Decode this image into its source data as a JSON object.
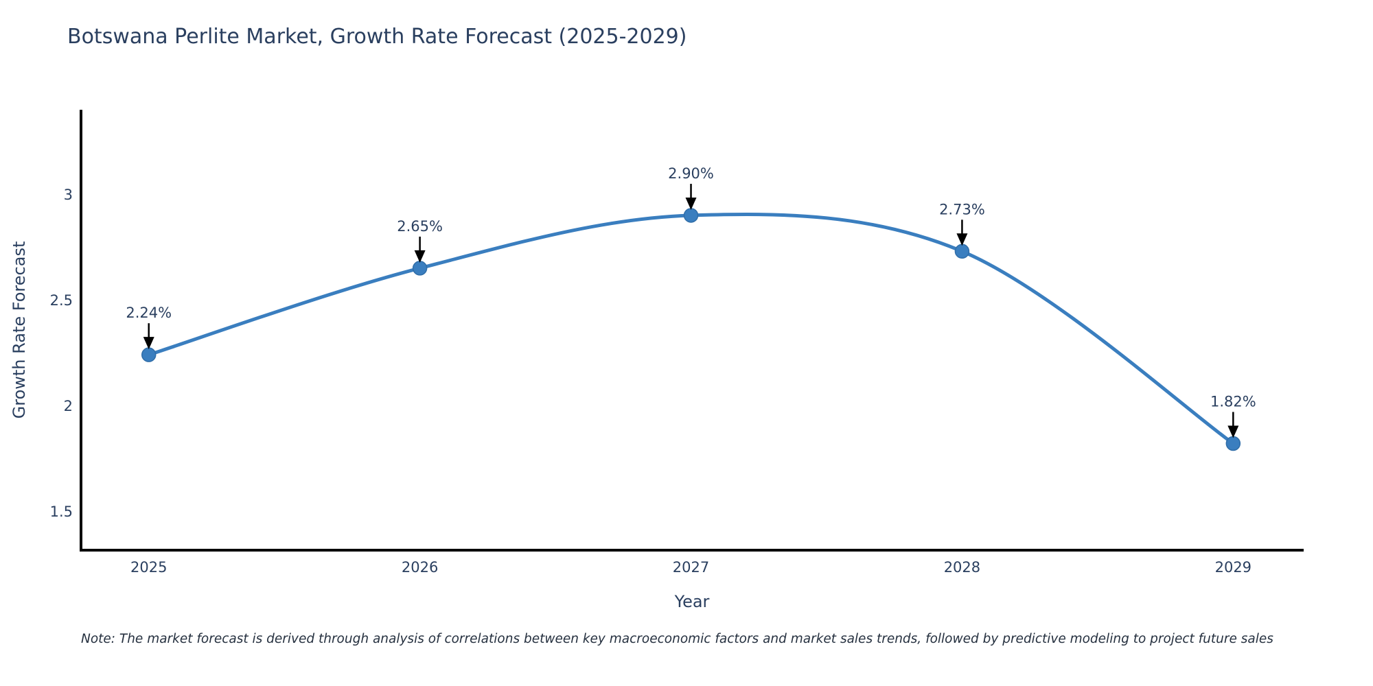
{
  "chart_data": {
    "type": "line",
    "title": "Botswana Perlite Market, Growth Rate Forecast (2025-2029)",
    "xlabel": "Year",
    "ylabel": "Growth Rate Forecast",
    "x": [
      2025,
      2026,
      2027,
      2028,
      2029
    ],
    "series": [
      {
        "name": "Growth Rate Forecast",
        "values": [
          2.24,
          2.65,
          2.9,
          2.73,
          1.82
        ]
      }
    ],
    "annotations": [
      "2.24%",
      "2.65%",
      "2.90%",
      "2.73%",
      "1.82%"
    ],
    "xtick_labels": [
      "2025",
      "2026",
      "2027",
      "2028",
      "2029"
    ],
    "ytick_values": [
      1.5,
      2,
      2.5,
      3
    ],
    "ytick_labels": [
      "1.5",
      "2",
      "2.5",
      "3"
    ],
    "xlim": [
      2024.75,
      2029.26
    ],
    "ylim": [
      1.315,
      3.4
    ],
    "line_shape": "spline",
    "grid": false,
    "legend_position": "none",
    "markers": true,
    "colors": {
      "line": "#3a7ebf",
      "marker_fill": "#3a7ebf",
      "marker_edge": "#2f6da8",
      "axis_line": "#000000",
      "text": "#2a3f5f",
      "arrow": "#000000"
    },
    "note": "Note: The market forecast is derived through analysis of correlations between key macroeconomic factors and market sales trends, followed by predictive modeling to project future sales"
  }
}
